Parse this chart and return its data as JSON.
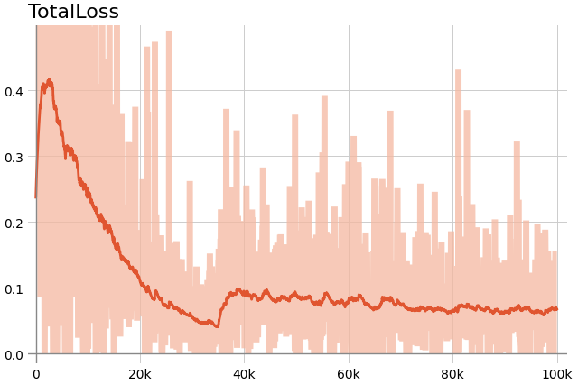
{
  "title": "TotalLoss",
  "xlim": [
    -1500,
    102000
  ],
  "ylim": [
    -0.015,
    0.5
  ],
  "yticks": [
    0,
    0.1,
    0.2,
    0.3,
    0.4
  ],
  "xtick_vals": [
    0,
    20000,
    40000,
    60000,
    80000,
    100000
  ],
  "xtick_labels": [
    "0",
    "20k",
    "40k",
    "60k",
    "80k",
    "100k"
  ],
  "line_color": "#e05530",
  "band_color": "#f5b8a0",
  "grid_color": "#cccccc",
  "bg_color": "#ffffff",
  "title_fontsize": 16,
  "axis_fontsize": 10,
  "vline_color": "#888888",
  "hline_color": "#888888"
}
